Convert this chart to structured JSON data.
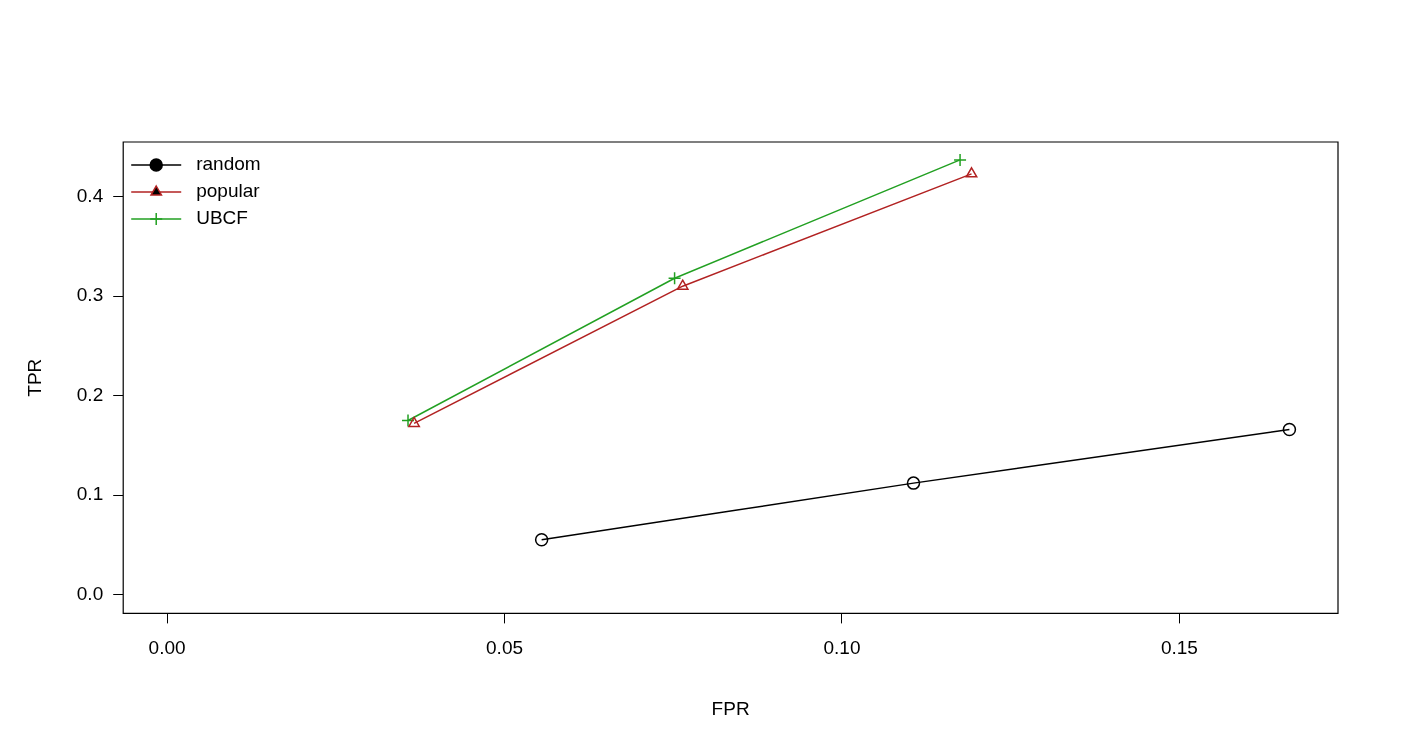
{
  "chart_data": {
    "type": "line",
    "xlabel": "FPR",
    "ylabel": "TPR",
    "xlim": [
      -0.0065,
      0.1735
    ],
    "ylim": [
      -0.019,
      0.455
    ],
    "xticks": [
      {
        "value": 0,
        "label": "0.00"
      },
      {
        "value": 0.05,
        "label": "0.05"
      },
      {
        "value": 0.1,
        "label": "0.10"
      },
      {
        "value": 0.15,
        "label": "0.15"
      }
    ],
    "yticks": [
      {
        "value": 0,
        "label": "0.0"
      },
      {
        "value": 0.1,
        "label": "0.1"
      },
      {
        "value": 0.2,
        "label": "0.2"
      },
      {
        "value": 0.3,
        "label": "0.3"
      },
      {
        "value": 0.4,
        "label": "0.4"
      }
    ],
    "grid": false,
    "legend": "top left",
    "line_style": "solid",
    "series": [
      {
        "name": "random",
        "color": "#000000",
        "marker": "circle",
        "x": [
          0.0555,
          0.1106,
          0.1663
        ],
        "values": [
          0.055,
          0.112,
          0.166
        ]
      },
      {
        "name": "popular",
        "color": "#b22222",
        "marker": "triangle",
        "x": [
          0.0366,
          0.0764,
          0.1192
        ],
        "values": [
          0.172,
          0.31,
          0.423
        ]
      },
      {
        "name": "UBCF",
        "color": "#22a022",
        "marker": "cross",
        "x": [
          0.0357,
          0.0752,
          0.1175
        ],
        "values": [
          0.175,
          0.318,
          0.437
        ]
      }
    ]
  }
}
